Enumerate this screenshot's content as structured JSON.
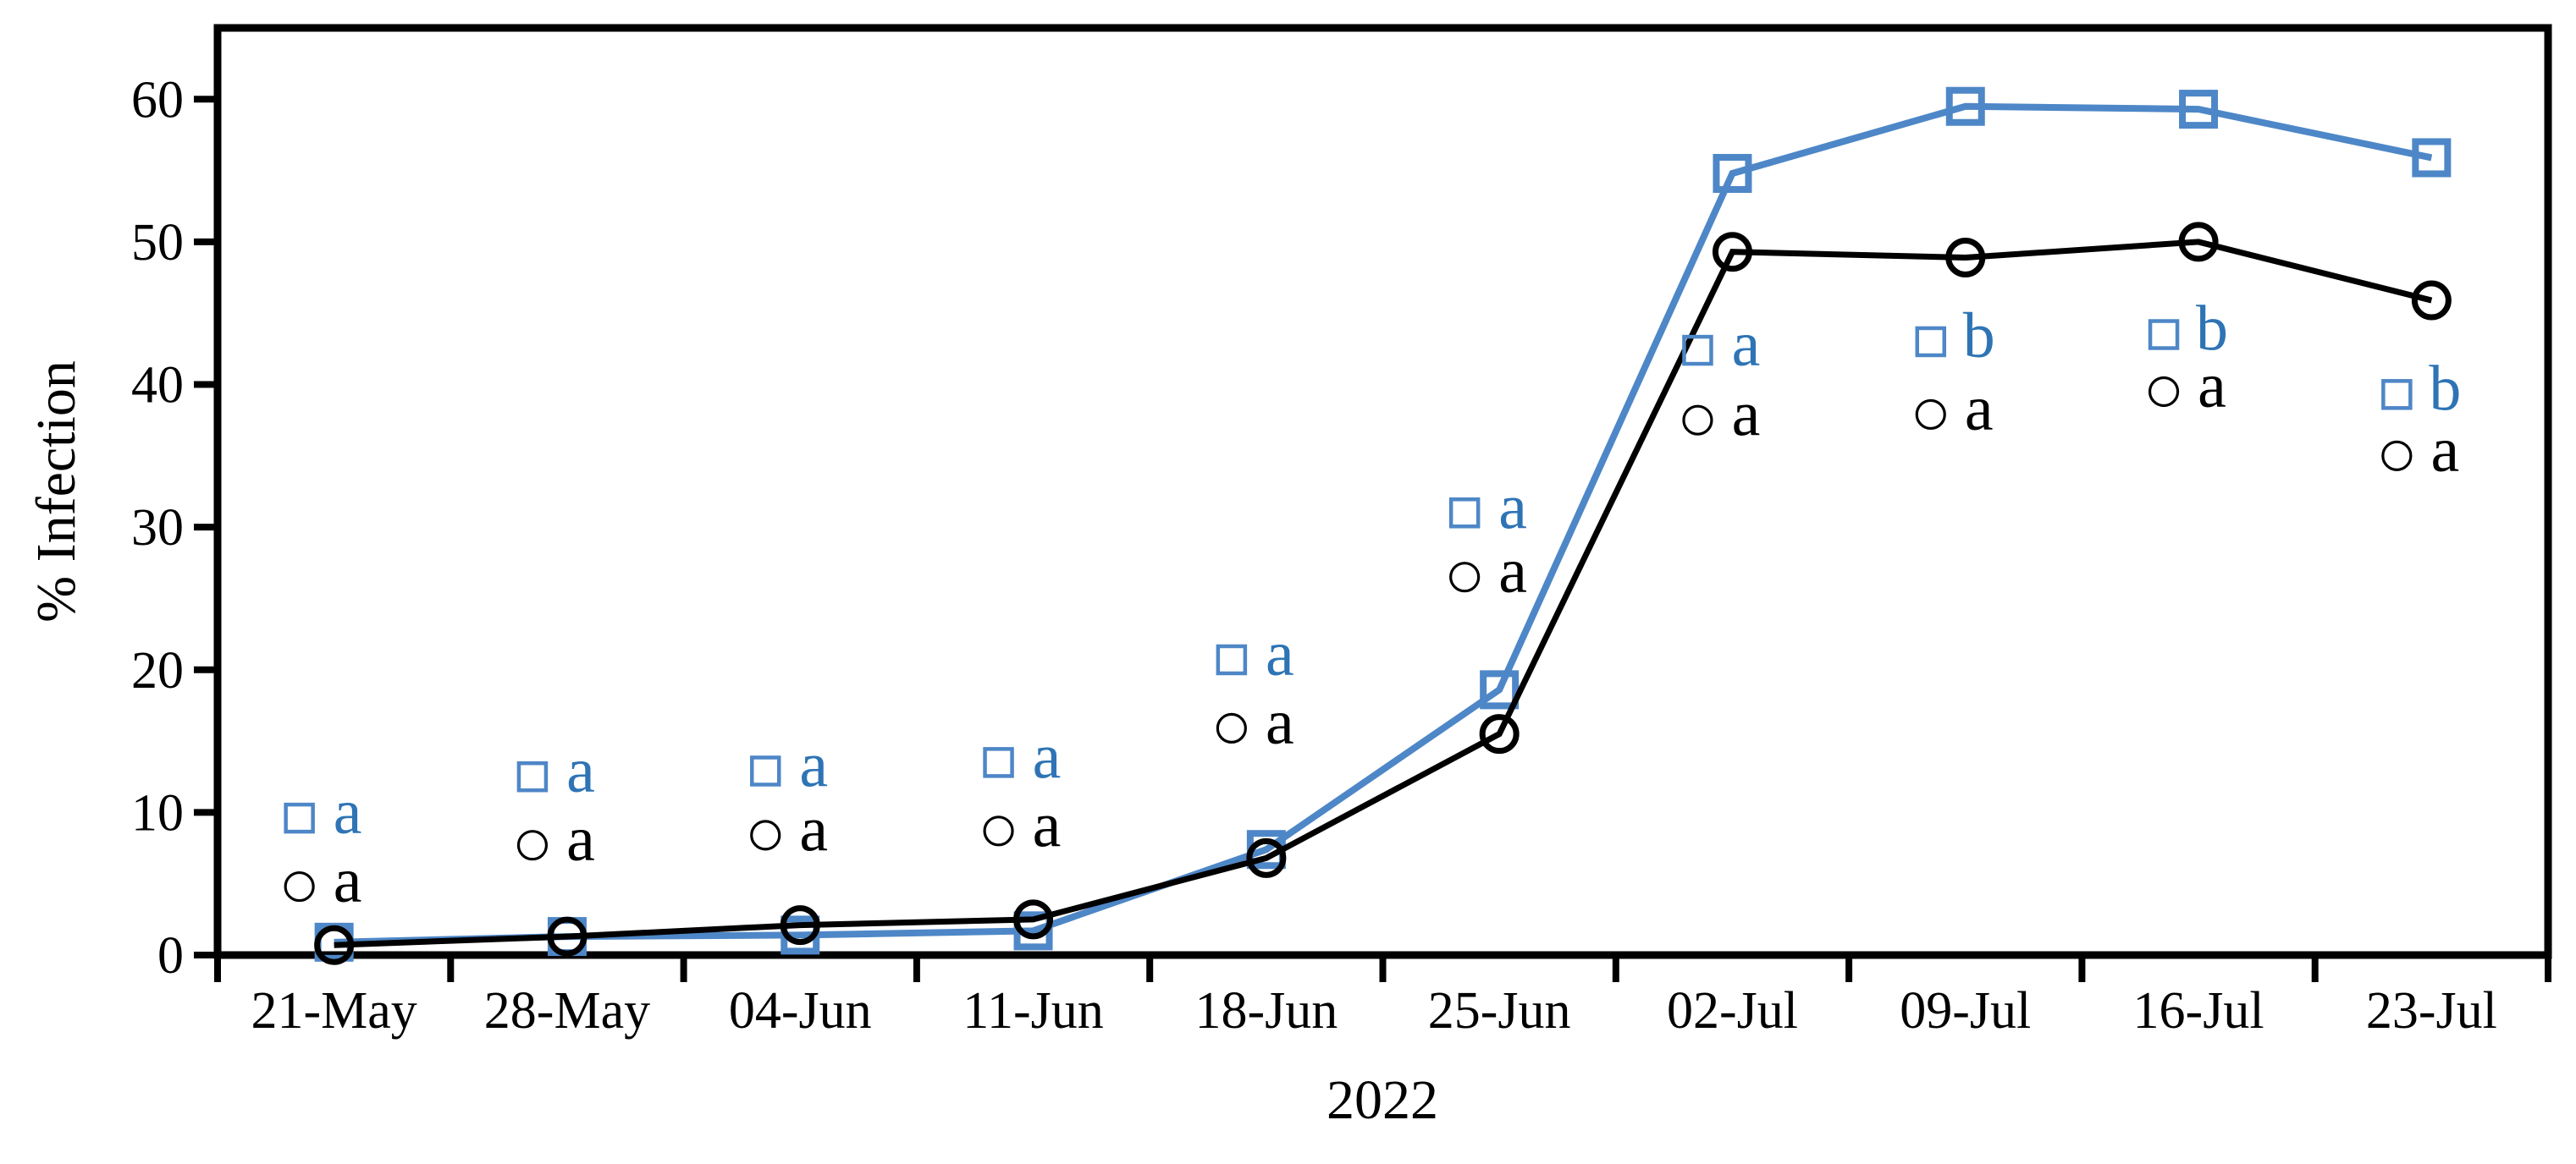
{
  "figure": {
    "y_axis_title": "% Infection",
    "x_axis_title": "2022"
  },
  "colors": {
    "series_blue": "#4e87c7",
    "annotation_blue_text": "#2e74b5",
    "series_black": "#000000",
    "axis_black": "#000000",
    "background": "#ffffff"
  },
  "chart_data": {
    "type": "line",
    "title": "",
    "xlabel": "2022",
    "ylabel": "% Infection",
    "categories": [
      "21-May",
      "28-May",
      "04-Jun",
      "11-Jun",
      "18-Jun",
      "25-Jun",
      "02-Jul",
      "09-Jul",
      "16-Jul",
      "23-Jul"
    ],
    "yticks": [
      0,
      10,
      20,
      30,
      40,
      50,
      60
    ],
    "ylim": [
      0,
      65
    ],
    "grid": false,
    "legend_position": "none",
    "series": [
      {
        "name": "blue open-square series",
        "marker": "open-square",
        "color": "#4e87c7",
        "values": [
          0.9,
          1.3,
          1.4,
          1.7,
          7.4,
          18.6,
          54.8,
          59.5,
          59.3,
          55.9
        ]
      },
      {
        "name": "black open-circle series",
        "marker": "open-circle",
        "color": "#000000",
        "values": [
          0.7,
          1.3,
          2.1,
          2.5,
          6.8,
          15.5,
          49.3,
          48.9,
          50.0,
          45.9
        ]
      }
    ],
    "significance_annotations": {
      "description": "letter annotations at each date, blue square row above black circle row",
      "blue": {
        "letters": [
          "a",
          "a",
          "a",
          "a",
          "a",
          "a",
          "a",
          "b",
          "b",
          "b"
        ],
        "y_values": [
          9.6,
          12.5,
          12.9,
          13.5,
          20.7,
          31.0,
          42.4,
          43.0,
          43.5,
          39.3
        ]
      },
      "black": {
        "letters": [
          "a",
          "a",
          "a",
          "a",
          "a",
          "a",
          "a",
          "a",
          "a",
          "a"
        ],
        "y_values": [
          4.8,
          7.7,
          8.4,
          8.7,
          15.9,
          26.5,
          37.5,
          37.9,
          39.5,
          35.0
        ]
      }
    }
  }
}
